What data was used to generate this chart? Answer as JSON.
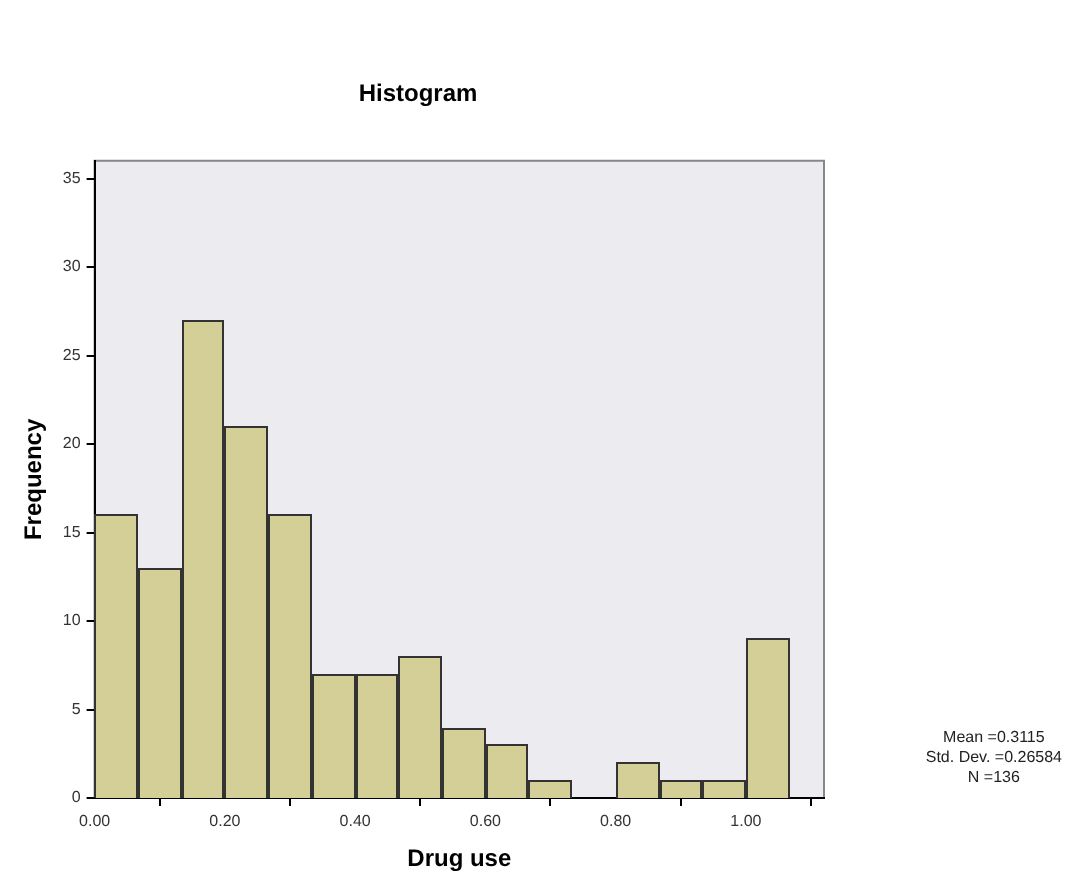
{
  "chart_data": {
    "type": "histogram",
    "title": "Histogram",
    "xlabel": "Drug use",
    "ylabel": "Frequency",
    "bins": [
      0,
      0.0667,
      0.1333,
      0.2,
      0.2667,
      0.3333,
      0.4,
      0.4667,
      0.5333,
      0.6,
      0.6667,
      0.7333,
      0.8,
      0.8667,
      0.9333,
      1,
      1.0667
    ],
    "values": [
      16,
      13,
      27,
      21,
      16,
      7,
      7,
      8,
      4,
      3,
      1,
      0,
      2,
      1,
      1,
      9
    ],
    "color": "#d3cf97",
    "xlim": [
      0,
      1.12
    ],
    "xticks": [
      {
        "value": 0,
        "label": "0.00"
      },
      {
        "value": 0.2,
        "label": "0.20"
      },
      {
        "value": 0.4,
        "label": "0.40"
      },
      {
        "value": 0.6,
        "label": "0.60"
      },
      {
        "value": 0.8,
        "label": "0.80"
      },
      {
        "value": 1,
        "label": "1.00"
      }
    ],
    "ylim": [
      0,
      36
    ],
    "yticks": [
      0,
      5,
      10,
      15,
      20,
      25,
      30,
      35
    ],
    "grid": false,
    "legend": false,
    "annotations": [
      "Mean =0.3115\nStd. Dev. =0.26584\nN =136"
    ]
  }
}
